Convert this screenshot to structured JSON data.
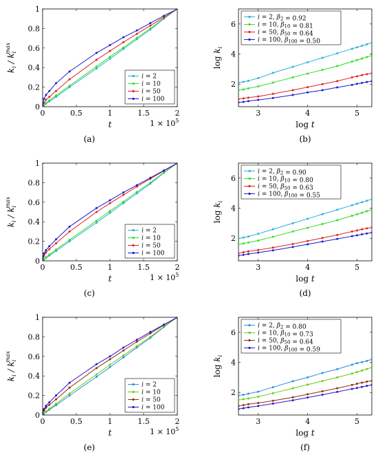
{
  "colors": {
    "i2": "#2ab0d8",
    "i10": "#33dd22",
    "i50": "#e02020",
    "i100": "#1a1acc"
  },
  "panels": {
    "a": {
      "caption": "(a)",
      "chart_data": {
        "type": "line",
        "xlabel": "t",
        "ylabel": "k_i / k_i^max",
        "x_multiplier": "1 × 10^5",
        "xlim": [
          0,
          2
        ],
        "ylim": [
          0,
          1
        ],
        "xticks": [
          "0",
          "0.5",
          "1",
          "1.5",
          "2"
        ],
        "yticks": [
          "0",
          "0.2",
          "0.4",
          "0.6",
          "0.8",
          "1"
        ],
        "legend_position": "bottom-right",
        "series": [
          {
            "name": "i = 2",
            "color": "#2ab0d8",
            "x": [
              0,
              0.02,
              0.05,
              0.1,
              0.2,
              0.4,
              0.8,
              1.0,
              1.2,
              1.4,
              1.6,
              1.8,
              2.0
            ],
            "y": [
              0,
              0.012,
              0.03,
              0.055,
              0.1,
              0.2,
              0.39,
              0.49,
              0.59,
              0.69,
              0.79,
              0.9,
              1.0
            ]
          },
          {
            "name": "i = 10",
            "color": "#33dd22",
            "x": [
              0,
              0.02,
              0.05,
              0.1,
              0.2,
              0.4,
              0.8,
              1.0,
              1.2,
              1.4,
              1.6,
              1.8,
              2.0
            ],
            "y": [
              0,
              0.015,
              0.035,
              0.065,
              0.115,
              0.215,
              0.41,
              0.51,
              0.605,
              0.705,
              0.8,
              0.905,
              1.0
            ]
          },
          {
            "name": "i = 50",
            "color": "#e02020",
            "x": [
              0,
              0.02,
              0.05,
              0.1,
              0.2,
              0.4,
              0.8,
              1.0,
              1.2,
              1.4,
              1.6,
              1.8,
              2.0
            ],
            "y": [
              0,
              0.04,
              0.07,
              0.1,
              0.16,
              0.28,
              0.48,
              0.57,
              0.66,
              0.745,
              0.83,
              0.915,
              1.0
            ]
          },
          {
            "name": "i = 100",
            "color": "#1a1acc",
            "x": [
              0,
              0.02,
              0.05,
              0.1,
              0.2,
              0.4,
              0.8,
              1.0,
              1.2,
              1.4,
              1.6,
              1.8,
              2.0
            ],
            "y": [
              0,
              0.08,
              0.12,
              0.16,
              0.24,
              0.36,
              0.55,
              0.63,
              0.71,
              0.78,
              0.855,
              0.93,
              1.0
            ]
          }
        ]
      }
    },
    "b": {
      "caption": "(b)",
      "chart_data": {
        "type": "line",
        "xlabel": "log t",
        "ylabel": "log k_i",
        "xlim": [
          2.6,
          5.3
        ],
        "ylim": [
          0.5,
          7
        ],
        "xticks": [
          "3",
          "4",
          "5"
        ],
        "yticks": [
          "2",
          "4",
          "6"
        ],
        "legend_position": "top-left",
        "series": [
          {
            "name": "i = 2, β2 = 0.92",
            "color": "#2ab0d8",
            "x": [
              2.6,
              2.7,
              2.8,
              3.0,
              3.3,
              3.7,
              4.0,
              4.3,
              4.6,
              4.9,
              5.0,
              5.1,
              5.2,
              5.3
            ],
            "y": [
              2.1,
              2.15,
              2.22,
              2.4,
              2.75,
              3.15,
              3.45,
              3.75,
              4.05,
              4.35,
              4.45,
              4.55,
              4.65,
              4.75
            ]
          },
          {
            "name": "i = 10, β10 = 0.81",
            "color": "#33dd22",
            "x": [
              2.6,
              2.7,
              2.8,
              3.0,
              3.3,
              3.7,
              4.0,
              4.3,
              4.6,
              4.9,
              5.0,
              5.1,
              5.2,
              5.3
            ],
            "y": [
              1.6,
              1.65,
              1.72,
              1.85,
              2.1,
              2.45,
              2.7,
              2.95,
              3.2,
              3.5,
              3.6,
              3.7,
              3.8,
              3.9
            ]
          },
          {
            "name": "i = 50, β50 = 0.64",
            "color": "#e02020",
            "x": [
              2.6,
              2.7,
              2.8,
              3.0,
              3.3,
              3.7,
              4.0,
              4.3,
              4.6,
              4.9,
              5.0,
              5.1,
              5.2,
              5.3
            ],
            "y": [
              1.0,
              1.05,
              1.1,
              1.18,
              1.35,
              1.6,
              1.8,
              2.0,
              2.2,
              2.45,
              2.52,
              2.6,
              2.66,
              2.72
            ]
          },
          {
            "name": "i = 100, β100 = 0.50",
            "color": "#1a1acc",
            "x": [
              2.6,
              2.7,
              2.8,
              3.0,
              3.3,
              3.7,
              4.0,
              4.3,
              4.6,
              4.9,
              5.0,
              5.1,
              5.2,
              5.3
            ],
            "y": [
              0.78,
              0.82,
              0.87,
              0.95,
              1.08,
              1.28,
              1.45,
              1.6,
              1.78,
              1.95,
              2.02,
              2.08,
              2.14,
              2.2
            ]
          }
        ]
      }
    },
    "c": {
      "caption": "(c)",
      "chart_data": {
        "type": "line",
        "xlabel": "t",
        "ylabel": "k_i / k_i^max",
        "x_multiplier": "1 × 10^5",
        "xlim": [
          0,
          2
        ],
        "ylim": [
          0,
          1
        ],
        "xticks": [
          "0",
          "0.5",
          "1",
          "1.5",
          "2"
        ],
        "yticks": [
          "0",
          "0.2",
          "0.4",
          "0.6",
          "0.8",
          "1"
        ],
        "legend_position": "bottom-right",
        "series": [
          {
            "name": "i = 2",
            "color": "#2ab0d8",
            "x": [
              0,
              0.02,
              0.05,
              0.1,
              0.2,
              0.4,
              0.8,
              1.0,
              1.2,
              1.4,
              1.6,
              1.8,
              2.0
            ],
            "y": [
              0,
              0.012,
              0.03,
              0.055,
              0.1,
              0.2,
              0.39,
              0.49,
              0.59,
              0.69,
              0.79,
              0.9,
              1.0
            ]
          },
          {
            "name": "i = 10",
            "color": "#33dd22",
            "x": [
              0,
              0.02,
              0.05,
              0.1,
              0.2,
              0.4,
              0.8,
              1.0,
              1.2,
              1.4,
              1.6,
              1.8,
              2.0
            ],
            "y": [
              0,
              0.015,
              0.035,
              0.065,
              0.115,
              0.215,
              0.41,
              0.51,
              0.605,
              0.705,
              0.8,
              0.905,
              1.0
            ]
          },
          {
            "name": "i = 50",
            "color": "#e02020",
            "x": [
              0,
              0.02,
              0.05,
              0.1,
              0.2,
              0.4,
              0.8,
              1.0,
              1.2,
              1.4,
              1.6,
              1.8,
              2.0
            ],
            "y": [
              0,
              0.05,
              0.085,
              0.12,
              0.18,
              0.3,
              0.5,
              0.59,
              0.675,
              0.76,
              0.84,
              0.92,
              1.0
            ]
          },
          {
            "name": "i = 100",
            "color": "#1a1acc",
            "x": [
              0,
              0.02,
              0.05,
              0.1,
              0.2,
              0.4,
              0.8,
              1.0,
              1.2,
              1.4,
              1.6,
              1.8,
              2.0
            ],
            "y": [
              0,
              0.075,
              0.11,
              0.15,
              0.22,
              0.35,
              0.54,
              0.62,
              0.7,
              0.775,
              0.85,
              0.925,
              1.0
            ]
          }
        ]
      }
    },
    "d": {
      "caption": "(d)",
      "chart_data": {
        "type": "line",
        "xlabel": "log t",
        "ylabel": "log k_i",
        "xlim": [
          2.6,
          5.3
        ],
        "ylim": [
          0.5,
          7
        ],
        "xticks": [
          "3",
          "4",
          "5"
        ],
        "yticks": [
          "2",
          "4",
          "6"
        ],
        "legend_position": "top-left",
        "series": [
          {
            "name": "i = 2, β2 = 0.90",
            "color": "#2ab0d8",
            "x": [
              2.6,
              2.7,
              2.8,
              3.0,
              3.3,
              3.7,
              4.0,
              4.3,
              4.6,
              4.9,
              5.0,
              5.1,
              5.2,
              5.3
            ],
            "y": [
              2.0,
              2.05,
              2.12,
              2.3,
              2.6,
              3.0,
              3.3,
              3.6,
              3.9,
              4.2,
              4.3,
              4.4,
              4.5,
              4.6
            ]
          },
          {
            "name": "i = 10, β10 = 0.80",
            "color": "#33dd22",
            "x": [
              2.6,
              2.7,
              2.8,
              3.0,
              3.3,
              3.7,
              4.0,
              4.3,
              4.6,
              4.9,
              5.0,
              5.1,
              5.2,
              5.3
            ],
            "y": [
              1.6,
              1.65,
              1.72,
              1.85,
              2.1,
              2.45,
              2.7,
              2.95,
              3.2,
              3.5,
              3.6,
              3.7,
              3.8,
              3.9
            ]
          },
          {
            "name": "i = 50, β50 = 0.63",
            "color": "#e02020",
            "x": [
              2.6,
              2.7,
              2.8,
              3.0,
              3.3,
              3.7,
              4.0,
              4.3,
              4.6,
              4.9,
              5.0,
              5.1,
              5.2,
              5.3
            ],
            "y": [
              1.0,
              1.07,
              1.13,
              1.22,
              1.38,
              1.62,
              1.82,
              2.02,
              2.22,
              2.45,
              2.52,
              2.6,
              2.66,
              2.72
            ]
          },
          {
            "name": "i = 100, β100 = 0.55",
            "color": "#1a1acc",
            "x": [
              2.6,
              2.7,
              2.8,
              3.0,
              3.3,
              3.7,
              4.0,
              4.3,
              4.6,
              4.9,
              5.0,
              5.1,
              5.2,
              5.3
            ],
            "y": [
              0.85,
              0.9,
              0.96,
              1.05,
              1.2,
              1.42,
              1.6,
              1.78,
              1.96,
              2.14,
              2.2,
              2.26,
              2.32,
              2.38
            ]
          }
        ]
      }
    },
    "e": {
      "caption": "(e)",
      "chart_data": {
        "type": "line",
        "xlabel": "t",
        "ylabel": "k_i / k_i^max",
        "x_multiplier": "1 × 10^5",
        "xlim": [
          0,
          2
        ],
        "ylim": [
          0,
          1
        ],
        "xticks": [
          "0",
          "0.5",
          "1",
          "1.5",
          "2"
        ],
        "yticks": [
          "0",
          "0.2",
          "0.4",
          "0.6",
          "0.8",
          "1"
        ],
        "legend_position": "bottom-right",
        "series": [
          {
            "name": "i = 2",
            "color": "#2a8ee0",
            "x": [
              0,
              0.02,
              0.05,
              0.1,
              0.2,
              0.4,
              0.8,
              1.0,
              1.2,
              1.4,
              1.6,
              1.8,
              2.0
            ],
            "y": [
              0,
              0.012,
              0.03,
              0.055,
              0.1,
              0.2,
              0.39,
              0.49,
              0.59,
              0.69,
              0.79,
              0.9,
              1.0
            ]
          },
          {
            "name": "i = 10",
            "color": "#66cc11",
            "x": [
              0,
              0.02,
              0.05,
              0.1,
              0.2,
              0.4,
              0.8,
              1.0,
              1.2,
              1.4,
              1.6,
              1.8,
              2.0
            ],
            "y": [
              0,
              0.015,
              0.035,
              0.065,
              0.115,
              0.22,
              0.415,
              0.515,
              0.61,
              0.705,
              0.8,
              0.905,
              1.0
            ]
          },
          {
            "name": "i = 50",
            "color": "#8b2e12",
            "x": [
              0,
              0.02,
              0.05,
              0.1,
              0.2,
              0.4,
              0.8,
              1.0,
              1.2,
              1.4,
              1.6,
              1.8,
              2.0
            ],
            "y": [
              0,
              0.045,
              0.075,
              0.105,
              0.16,
              0.28,
              0.48,
              0.57,
              0.66,
              0.75,
              0.835,
              0.92,
              1.0
            ]
          },
          {
            "name": "i = 100",
            "color": "#2a13c8",
            "x": [
              0,
              0.02,
              0.05,
              0.1,
              0.2,
              0.4,
              0.8,
              1.0,
              1.2,
              1.4,
              1.6,
              1.8,
              2.0
            ],
            "y": [
              0,
              0.06,
              0.095,
              0.13,
              0.2,
              0.33,
              0.52,
              0.6,
              0.69,
              0.77,
              0.85,
              0.925,
              1.0
            ]
          }
        ]
      }
    },
    "f": {
      "caption": "(f)",
      "chart_data": {
        "type": "line",
        "xlabel": "log t",
        "ylabel": "log k_i",
        "xlim": [
          2.6,
          5.3
        ],
        "ylim": [
          0.5,
          7
        ],
        "xticks": [
          "3",
          "4",
          "5"
        ],
        "yticks": [
          "2",
          "4",
          "6"
        ],
        "legend_position": "top-left",
        "series": [
          {
            "name": "i = 2, β2 = 0.80",
            "color": "#2a8ee0",
            "x": [
              2.6,
              2.7,
              2.8,
              3.0,
              3.3,
              3.7,
              4.0,
              4.3,
              4.6,
              4.9,
              5.0,
              5.1,
              5.2,
              5.3
            ],
            "y": [
              1.8,
              1.85,
              1.92,
              2.05,
              2.35,
              2.75,
              3.0,
              3.3,
              3.55,
              3.85,
              3.95,
              4.02,
              4.1,
              4.2
            ]
          },
          {
            "name": "i = 10, β10 = 0.73",
            "color": "#66cc11",
            "x": [
              2.6,
              2.7,
              2.8,
              3.0,
              3.3,
              3.7,
              4.0,
              4.3,
              4.6,
              4.9,
              5.0,
              5.1,
              5.2,
              5.3
            ],
            "y": [
              1.5,
              1.55,
              1.6,
              1.72,
              1.95,
              2.28,
              2.52,
              2.76,
              3.0,
              3.26,
              3.36,
              3.46,
              3.56,
              3.66
            ]
          },
          {
            "name": "i = 50, β50 = 0.64",
            "color": "#8b2e12",
            "x": [
              2.6,
              2.7,
              2.8,
              3.0,
              3.3,
              3.7,
              4.0,
              4.3,
              4.6,
              4.9,
              5.0,
              5.1,
              5.2,
              5.3
            ],
            "y": [
              1.1,
              1.16,
              1.22,
              1.3,
              1.45,
              1.68,
              1.88,
              2.08,
              2.28,
              2.5,
              2.58,
              2.65,
              2.72,
              2.78
            ]
          },
          {
            "name": "i = 100, β100 = 0.59",
            "color": "#2a13c8",
            "x": [
              2.6,
              2.7,
              2.8,
              3.0,
              3.3,
              3.7,
              4.0,
              4.3,
              4.6,
              4.9,
              5.0,
              5.1,
              5.2,
              5.3
            ],
            "y": [
              0.9,
              0.95,
              1.01,
              1.1,
              1.26,
              1.48,
              1.66,
              1.85,
              2.04,
              2.24,
              2.3,
              2.37,
              2.44,
              2.5
            ]
          }
        ]
      }
    }
  }
}
